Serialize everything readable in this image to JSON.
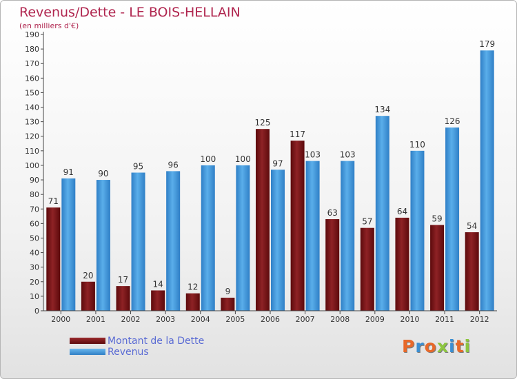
{
  "header": {
    "title": "Revenus/Dette - LE BOIS-HELLAIN",
    "subtitle": "(en milliers d'€)"
  },
  "logo": {
    "text": "Proxiti",
    "letter_colors": [
      "#e8692a",
      "#3b8fd3",
      "#e8692a",
      "#8dc63f",
      "#3b8fd3",
      "#e8692a",
      "#8dc63f"
    ]
  },
  "colors": {
    "dette": "#7b1416",
    "revenus": "#3a93dc",
    "axis": "#444444",
    "grid": "#d0d0d0",
    "legend_text": "#5a6bd4",
    "title": "#b0264f"
  },
  "chart_data": {
    "type": "bar",
    "title": "Revenus/Dette - LE BOIS-HELLAIN",
    "subtitle": "(en milliers d'€)",
    "categories": [
      "2000",
      "2001",
      "2002",
      "2003",
      "2004",
      "2005",
      "2006",
      "2007",
      "2008",
      "2009",
      "2010",
      "2011",
      "2012"
    ],
    "series": [
      {
        "name": "Montant de la Dette",
        "values": [
          71,
          20,
          17,
          14,
          12,
          9,
          125,
          117,
          63,
          57,
          64,
          59,
          54
        ]
      },
      {
        "name": "Revenus",
        "values": [
          91,
          90,
          95,
          96,
          100,
          100,
          97,
          103,
          103,
          134,
          110,
          126,
          179
        ]
      }
    ],
    "ylim": [
      0,
      190
    ],
    "ytick_step": 10,
    "grid": false,
    "data_labels": true,
    "legend_position": "bottom-left"
  }
}
